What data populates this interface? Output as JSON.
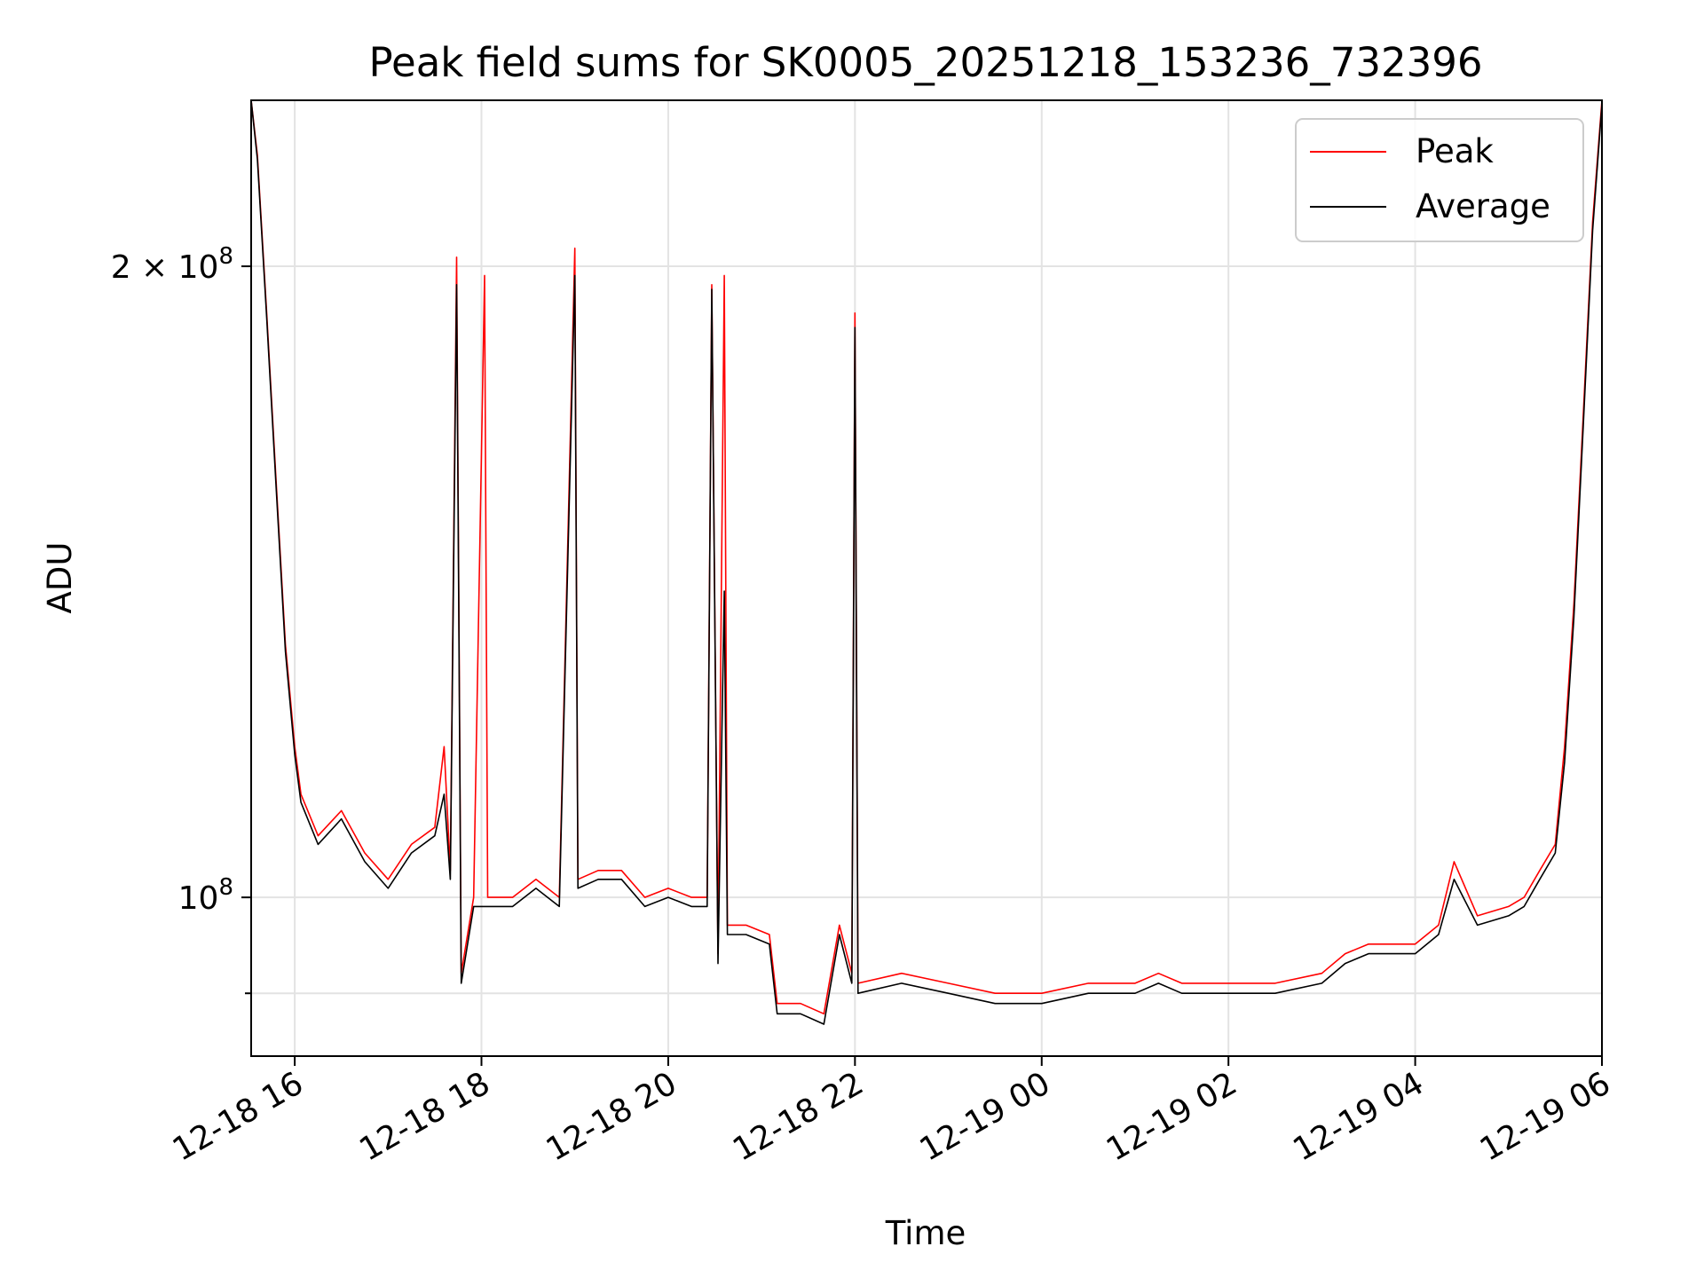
{
  "chart_data": {
    "type": "line",
    "title": "Peak field sums for SK0005_20251218_153236_732396",
    "xlabel": "Time",
    "ylabel": "ADU",
    "yscale": "log",
    "ylim": [
      84000000,
      240000000
    ],
    "xlim": [
      "2025-12-18 15:32",
      "2025-12-19 06:00"
    ],
    "grid": true,
    "legend_position": "top-right",
    "x_ticks": [
      {
        "value": "2025-12-18 16:00",
        "label": "12-18 16"
      },
      {
        "value": "2025-12-18 18:00",
        "label": "12-18 18"
      },
      {
        "value": "2025-12-18 20:00",
        "label": "12-18 20"
      },
      {
        "value": "2025-12-18 22:00",
        "label": "12-18 22"
      },
      {
        "value": "2025-12-19 00:00",
        "label": "12-19 00"
      },
      {
        "value": "2025-12-19 02:00",
        "label": "12-19 02"
      },
      {
        "value": "2025-12-19 04:00",
        "label": "12-19 04"
      },
      {
        "value": "2025-12-19 06:00",
        "label": "12-19 06"
      }
    ],
    "y_ticks": [
      {
        "value": 100000000,
        "label": "10",
        "exp": "8"
      },
      {
        "value": 200000000,
        "label": "2 × 10",
        "exp": "8"
      }
    ],
    "y_minor_ticks": [
      90000000
    ],
    "series": [
      {
        "name": "Peak",
        "color": "#ff0000",
        "points": [
          [
            "2025-12-18 15:32",
            240000000
          ],
          [
            "2025-12-18 15:36",
            226000000
          ],
          [
            "2025-12-18 15:42",
            190000000
          ],
          [
            "2025-12-18 15:48",
            158000000
          ],
          [
            "2025-12-18 15:54",
            132000000
          ],
          [
            "2025-12-18 16:00",
            118000000
          ],
          [
            "2025-12-18 16:04",
            112000000
          ],
          [
            "2025-12-18 16:15",
            107000000
          ],
          [
            "2025-12-18 16:30",
            110000000
          ],
          [
            "2025-12-18 16:45",
            105000000
          ],
          [
            "2025-12-18 17:00",
            102000000
          ],
          [
            "2025-12-18 17:15",
            106000000
          ],
          [
            "2025-12-18 17:30",
            108000000
          ],
          [
            "2025-12-18 17:36",
            118000000
          ],
          [
            "2025-12-18 17:40",
            103000000
          ],
          [
            "2025-12-18 17:44",
            202000000
          ],
          [
            "2025-12-18 17:47",
            92000000
          ],
          [
            "2025-12-18 17:55",
            100000000
          ],
          [
            "2025-12-18 18:02",
            198000000
          ],
          [
            "2025-12-18 18:04",
            100000000
          ],
          [
            "2025-12-18 18:20",
            100000000
          ],
          [
            "2025-12-18 18:35",
            102000000
          ],
          [
            "2025-12-18 18:50",
            100000000
          ],
          [
            "2025-12-18 19:00",
            204000000
          ],
          [
            "2025-12-18 19:02",
            102000000
          ],
          [
            "2025-12-18 19:15",
            103000000
          ],
          [
            "2025-12-18 19:30",
            103000000
          ],
          [
            "2025-12-18 19:45",
            100000000
          ],
          [
            "2025-12-18 20:00",
            101000000
          ],
          [
            "2025-12-18 20:15",
            100000000
          ],
          [
            "2025-12-18 20:25",
            100000000
          ],
          [
            "2025-12-18 20:28",
            196000000
          ],
          [
            "2025-12-18 20:32",
            94000000
          ],
          [
            "2025-12-18 20:36",
            198000000
          ],
          [
            "2025-12-18 20:38",
            97000000
          ],
          [
            "2025-12-18 20:50",
            97000000
          ],
          [
            "2025-12-18 21:05",
            96000000
          ],
          [
            "2025-12-18 21:10",
            89000000
          ],
          [
            "2025-12-18 21:25",
            89000000
          ],
          [
            "2025-12-18 21:40",
            88000000
          ],
          [
            "2025-12-18 21:50",
            97000000
          ],
          [
            "2025-12-18 21:58",
            92000000
          ],
          [
            "2025-12-18 22:00",
            190000000
          ],
          [
            "2025-12-18 22:02",
            91000000
          ],
          [
            "2025-12-18 22:30",
            92000000
          ],
          [
            "2025-12-18 23:00",
            91000000
          ],
          [
            "2025-12-18 23:30",
            90000000
          ],
          [
            "2025-12-19 00:00",
            90000000
          ],
          [
            "2025-12-19 00:30",
            91000000
          ],
          [
            "2025-12-19 01:00",
            91000000
          ],
          [
            "2025-12-19 01:15",
            92000000
          ],
          [
            "2025-12-19 01:30",
            91000000
          ],
          [
            "2025-12-19 02:00",
            91000000
          ],
          [
            "2025-12-19 02:30",
            91000000
          ],
          [
            "2025-12-19 03:00",
            92000000
          ],
          [
            "2025-12-19 03:15",
            94000000
          ],
          [
            "2025-12-19 03:30",
            95000000
          ],
          [
            "2025-12-19 04:00",
            95000000
          ],
          [
            "2025-12-19 04:15",
            97000000
          ],
          [
            "2025-12-19 04:25",
            104000000
          ],
          [
            "2025-12-19 04:40",
            98000000
          ],
          [
            "2025-12-19 05:00",
            99000000
          ],
          [
            "2025-12-19 05:10",
            100000000
          ],
          [
            "2025-12-19 05:20",
            103000000
          ],
          [
            "2025-12-19 05:30",
            106000000
          ],
          [
            "2025-12-19 05:36",
            118000000
          ],
          [
            "2025-12-19 05:42",
            138000000
          ],
          [
            "2025-12-19 05:48",
            170000000
          ],
          [
            "2025-12-19 05:54",
            210000000
          ],
          [
            "2025-12-19 06:00",
            240000000
          ]
        ]
      },
      {
        "name": "Average",
        "color": "#000000",
        "points": [
          [
            "2025-12-18 15:32",
            240000000
          ],
          [
            "2025-12-18 15:36",
            225000000
          ],
          [
            "2025-12-18 15:42",
            189000000
          ],
          [
            "2025-12-18 15:48",
            157000000
          ],
          [
            "2025-12-18 15:54",
            131000000
          ],
          [
            "2025-12-18 16:00",
            117000000
          ],
          [
            "2025-12-18 16:04",
            111000000
          ],
          [
            "2025-12-18 16:15",
            106000000
          ],
          [
            "2025-12-18 16:30",
            109000000
          ],
          [
            "2025-12-18 16:45",
            104000000
          ],
          [
            "2025-12-18 17:00",
            101000000
          ],
          [
            "2025-12-18 17:15",
            105000000
          ],
          [
            "2025-12-18 17:30",
            107000000
          ],
          [
            "2025-12-18 17:36",
            112000000
          ],
          [
            "2025-12-18 17:40",
            102000000
          ],
          [
            "2025-12-18 17:44",
            196000000
          ],
          [
            "2025-12-18 17:47",
            91000000
          ],
          [
            "2025-12-18 17:55",
            99000000
          ],
          [
            "2025-12-18 18:02",
            99000000
          ],
          [
            "2025-12-18 18:04",
            99000000
          ],
          [
            "2025-12-18 18:20",
            99000000
          ],
          [
            "2025-12-18 18:35",
            101000000
          ],
          [
            "2025-12-18 18:50",
            99000000
          ],
          [
            "2025-12-18 19:00",
            198000000
          ],
          [
            "2025-12-18 19:02",
            101000000
          ],
          [
            "2025-12-18 19:15",
            102000000
          ],
          [
            "2025-12-18 19:30",
            102000000
          ],
          [
            "2025-12-18 19:45",
            99000000
          ],
          [
            "2025-12-18 20:00",
            100000000
          ],
          [
            "2025-12-18 20:15",
            99000000
          ],
          [
            "2025-12-18 20:25",
            99000000
          ],
          [
            "2025-12-18 20:28",
            195000000
          ],
          [
            "2025-12-18 20:32",
            93000000
          ],
          [
            "2025-12-18 20:36",
            140000000
          ],
          [
            "2025-12-18 20:38",
            96000000
          ],
          [
            "2025-12-18 20:50",
            96000000
          ],
          [
            "2025-12-18 21:05",
            95000000
          ],
          [
            "2025-12-18 21:10",
            88000000
          ],
          [
            "2025-12-18 21:25",
            88000000
          ],
          [
            "2025-12-18 21:40",
            87000000
          ],
          [
            "2025-12-18 21:50",
            96000000
          ],
          [
            "2025-12-18 21:58",
            91000000
          ],
          [
            "2025-12-18 22:00",
            187000000
          ],
          [
            "2025-12-18 22:02",
            90000000
          ],
          [
            "2025-12-18 22:30",
            91000000
          ],
          [
            "2025-12-18 23:00",
            90000000
          ],
          [
            "2025-12-18 23:30",
            89000000
          ],
          [
            "2025-12-19 00:00",
            89000000
          ],
          [
            "2025-12-19 00:30",
            90000000
          ],
          [
            "2025-12-19 01:00",
            90000000
          ],
          [
            "2025-12-19 01:15",
            91000000
          ],
          [
            "2025-12-19 01:30",
            90000000
          ],
          [
            "2025-12-19 02:00",
            90000000
          ],
          [
            "2025-12-19 02:30",
            90000000
          ],
          [
            "2025-12-19 03:00",
            91000000
          ],
          [
            "2025-12-19 03:15",
            93000000
          ],
          [
            "2025-12-19 03:30",
            94000000
          ],
          [
            "2025-12-19 04:00",
            94000000
          ],
          [
            "2025-12-19 04:15",
            96000000
          ],
          [
            "2025-12-19 04:25",
            102000000
          ],
          [
            "2025-12-19 04:40",
            97000000
          ],
          [
            "2025-12-19 05:00",
            98000000
          ],
          [
            "2025-12-19 05:10",
            99000000
          ],
          [
            "2025-12-19 05:20",
            102000000
          ],
          [
            "2025-12-19 05:30",
            105000000
          ],
          [
            "2025-12-19 05:36",
            116000000
          ],
          [
            "2025-12-19 05:42",
            136000000
          ],
          [
            "2025-12-19 05:48",
            168000000
          ],
          [
            "2025-12-19 05:54",
            208000000
          ],
          [
            "2025-12-19 06:00",
            239000000
          ]
        ]
      }
    ]
  }
}
